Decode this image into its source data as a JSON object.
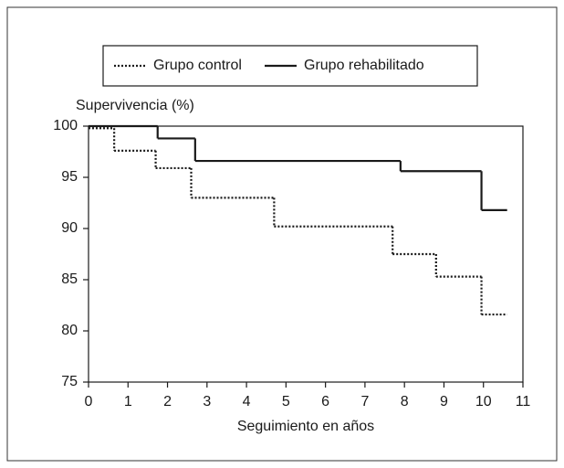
{
  "chart_data": {
    "type": "step",
    "xlabel": "Seguimiento en años",
    "ylabel": "Supervivencia (%)",
    "xlim": [
      0,
      11
    ],
    "xticks": [
      0,
      1,
      2,
      3,
      4,
      5,
      6,
      7,
      8,
      9,
      10,
      11
    ],
    "ylim": [
      75,
      100
    ],
    "yticks": [
      75,
      80,
      85,
      90,
      95,
      100
    ],
    "legend": "top",
    "series": [
      {
        "name": "Grupo control",
        "color": "#1a1a1a",
        "dash": "dotted",
        "x": [
          0,
          0.65,
          1.7,
          2.6,
          4.7,
          7.7,
          8.8,
          9.95,
          10.6
        ],
        "values": [
          99.8,
          97.6,
          95.9,
          93,
          90.2,
          87.5,
          85.3,
          81.6,
          81.6
        ]
      },
      {
        "name": "Grupo rehabilitado",
        "color": "#1a1a1a",
        "dash": "solid",
        "x": [
          0,
          1.75,
          2.7,
          7.9,
          9.95,
          10.6
        ],
        "values": [
          100,
          98.8,
          96.6,
          95.6,
          91.8,
          91.8
        ]
      }
    ]
  }
}
